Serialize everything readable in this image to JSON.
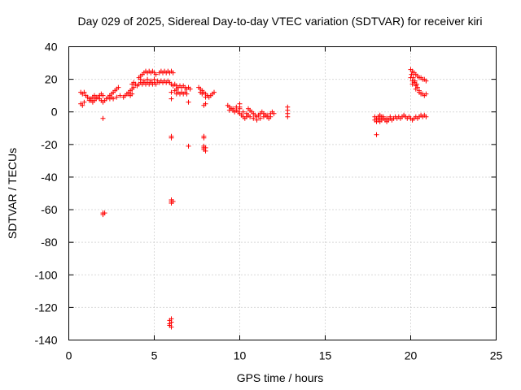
{
  "chart_data": {
    "type": "scatter",
    "title": "Day 029 of 2025, Sidereal Day-to-day VTEC variation (SDTVAR) for receiver kiri",
    "xlabel": "GPS time / hours",
    "ylabel": "SDTVAR / TECUs",
    "xlim": [
      0,
      25
    ],
    "ylim": [
      -140,
      40
    ],
    "x_ticks": [
      0,
      5,
      10,
      15,
      20,
      25
    ],
    "y_ticks": [
      40,
      20,
      0,
      -20,
      -40,
      -60,
      -80,
      -100,
      -120,
      -140
    ],
    "grid": true,
    "marker": "+",
    "series": [
      {
        "name": "SDTVAR",
        "color": "#ff0000",
        "points": [
          [
            0.7,
            5
          ],
          [
            0.8,
            4
          ],
          [
            0.9,
            6
          ],
          [
            0.7,
            12
          ],
          [
            0.8,
            11
          ],
          [
            0.9,
            12
          ],
          [
            1.0,
            10
          ],
          [
            1.1,
            9
          ],
          [
            1.2,
            8
          ],
          [
            1.3,
            7
          ],
          [
            1.4,
            6
          ],
          [
            1.5,
            7
          ],
          [
            1.6,
            8
          ],
          [
            1.7,
            9
          ],
          [
            1.8,
            10
          ],
          [
            1.9,
            11
          ],
          [
            2.0,
            10
          ],
          [
            1.2,
            7
          ],
          [
            1.3,
            8
          ],
          [
            1.4,
            9
          ],
          [
            1.5,
            10
          ],
          [
            1.6,
            9
          ],
          [
            1.8,
            8
          ],
          [
            1.9,
            7
          ],
          [
            2.0,
            6
          ],
          [
            2.1,
            7
          ],
          [
            2.2,
            8
          ],
          [
            2.3,
            9
          ],
          [
            2.4,
            10
          ],
          [
            2.5,
            11
          ],
          [
            2.6,
            12
          ],
          [
            2.7,
            13
          ],
          [
            2.8,
            14
          ],
          [
            2.9,
            15
          ],
          [
            2.4,
            8
          ],
          [
            2.5,
            9
          ],
          [
            2.6,
            8
          ],
          [
            2.8,
            9
          ],
          [
            3.0,
            10
          ],
          [
            3.2,
            9
          ],
          [
            3.3,
            10
          ],
          [
            3.4,
            11
          ],
          [
            3.5,
            12
          ],
          [
            3.6,
            13
          ],
          [
            3.7,
            14
          ],
          [
            3.8,
            15
          ],
          [
            3.5,
            11
          ],
          [
            3.6,
            10
          ],
          [
            3.7,
            11
          ],
          [
            3.7,
            17
          ],
          [
            3.8,
            18
          ],
          [
            3.9,
            17
          ],
          [
            4.0,
            16
          ],
          [
            4.1,
            17
          ],
          [
            4.2,
            18
          ],
          [
            4.3,
            17
          ],
          [
            4.4,
            18
          ],
          [
            4.5,
            17
          ],
          [
            4.6,
            18
          ],
          [
            4.7,
            17
          ],
          [
            4.8,
            18
          ],
          [
            4.9,
            17
          ],
          [
            5.0,
            18
          ],
          [
            5.1,
            17
          ],
          [
            4.1,
            21
          ],
          [
            4.2,
            22
          ],
          [
            4.3,
            23
          ],
          [
            4.4,
            24
          ],
          [
            4.5,
            25
          ],
          [
            4.6,
            24
          ],
          [
            4.7,
            25
          ],
          [
            4.8,
            24
          ],
          [
            4.9,
            25
          ],
          [
            5.0,
            24
          ],
          [
            5.1,
            23
          ],
          [
            4.2,
            20
          ],
          [
            4.4,
            19
          ],
          [
            4.6,
            20
          ],
          [
            4.8,
            19
          ],
          [
            5.0,
            20
          ],
          [
            5.2,
            19
          ],
          [
            5.3,
            18
          ],
          [
            5.4,
            19
          ],
          [
            5.5,
            18
          ],
          [
            5.6,
            19
          ],
          [
            5.7,
            18
          ],
          [
            5.8,
            19
          ],
          [
            5.9,
            18
          ],
          [
            6.0,
            17
          ],
          [
            6.1,
            16
          ],
          [
            6.2,
            17
          ],
          [
            6.3,
            16
          ],
          [
            5.3,
            24
          ],
          [
            5.4,
            25
          ],
          [
            5.5,
            24
          ],
          [
            5.6,
            25
          ],
          [
            5.7,
            24
          ],
          [
            5.8,
            25
          ],
          [
            5.9,
            24
          ],
          [
            6.0,
            25
          ],
          [
            6.1,
            24
          ],
          [
            6.0,
            12
          ],
          [
            6.2,
            13
          ],
          [
            6.3,
            14
          ],
          [
            6.4,
            15
          ],
          [
            6.5,
            16
          ],
          [
            6.6,
            15
          ],
          [
            6.7,
            16
          ],
          [
            6.8,
            15
          ],
          [
            6.9,
            14
          ],
          [
            7.0,
            15
          ],
          [
            7.1,
            14
          ],
          [
            6.3,
            11
          ],
          [
            6.4,
            12
          ],
          [
            6.5,
            11
          ],
          [
            6.6,
            12
          ],
          [
            6.7,
            11
          ],
          [
            6.8,
            12
          ],
          [
            6.9,
            11
          ],
          [
            7.0,
            6
          ],
          [
            6.0,
            8
          ],
          [
            7.6,
            15
          ],
          [
            7.7,
            14
          ],
          [
            7.8,
            13
          ],
          [
            7.9,
            12
          ],
          [
            8.0,
            11
          ],
          [
            8.1,
            10
          ],
          [
            8.2,
            9
          ],
          [
            8.3,
            10
          ],
          [
            8.4,
            11
          ],
          [
            8.5,
            12
          ],
          [
            7.7,
            12
          ],
          [
            7.8,
            11
          ],
          [
            8.0,
            9
          ],
          [
            7.9,
            4
          ],
          [
            8.0,
            5
          ],
          [
            9.3,
            4
          ],
          [
            9.4,
            3
          ],
          [
            9.5,
            2
          ],
          [
            9.6,
            1
          ],
          [
            9.7,
            0
          ],
          [
            9.8,
            1
          ],
          [
            9.9,
            0
          ],
          [
            10.0,
            -1
          ],
          [
            10.1,
            -2
          ],
          [
            10.2,
            -3
          ],
          [
            10.3,
            -4
          ],
          [
            10.4,
            -3
          ],
          [
            9.4,
            1
          ],
          [
            9.6,
            2
          ],
          [
            9.8,
            3
          ],
          [
            10.0,
            2
          ],
          [
            10.2,
            0
          ],
          [
            10.4,
            -1
          ],
          [
            10.5,
            -2
          ],
          [
            10.6,
            -3
          ],
          [
            10.0,
            5
          ],
          [
            10.0,
            3
          ],
          [
            10.5,
            2
          ],
          [
            10.6,
            1
          ],
          [
            10.7,
            0
          ],
          [
            10.8,
            -1
          ],
          [
            10.9,
            -2
          ],
          [
            11.0,
            -3
          ],
          [
            11.1,
            -2
          ],
          [
            11.2,
            -1
          ],
          [
            11.3,
            0
          ],
          [
            11.4,
            -1
          ],
          [
            11.5,
            -2
          ],
          [
            11.6,
            -3
          ],
          [
            10.8,
            -4
          ],
          [
            11.0,
            -5
          ],
          [
            11.2,
            -4
          ],
          [
            11.4,
            -3
          ],
          [
            11.6,
            -2
          ],
          [
            11.8,
            -1
          ],
          [
            11.9,
            0
          ],
          [
            12.0,
            -1
          ],
          [
            11.7,
            -4
          ],
          [
            11.8,
            -3
          ],
          [
            12.8,
            3
          ],
          [
            12.8,
            1
          ],
          [
            12.8,
            -1
          ],
          [
            12.8,
            -3
          ],
          [
            2.0,
            -4
          ],
          [
            6.0,
            -15
          ],
          [
            6.0,
            -16
          ],
          [
            7.0,
            -21
          ],
          [
            7.9,
            -15
          ],
          [
            7.9,
            -16
          ],
          [
            7.9,
            -21
          ],
          [
            7.9,
            -22
          ],
          [
            7.9,
            -23
          ],
          [
            8.0,
            -22
          ],
          [
            8.0,
            -24
          ],
          [
            2.0,
            -62
          ],
          [
            2.0,
            -63
          ],
          [
            2.1,
            -62
          ],
          [
            6.0,
            -54
          ],
          [
            6.0,
            -55
          ],
          [
            6.0,
            -56
          ],
          [
            6.1,
            -55
          ],
          [
            5.9,
            -128
          ],
          [
            5.9,
            -130
          ],
          [
            6.0,
            -129
          ],
          [
            5.9,
            -131
          ],
          [
            6.0,
            -132
          ],
          [
            6.0,
            -127
          ],
          [
            17.9,
            -3
          ],
          [
            17.9,
            -5
          ],
          [
            18.0,
            -4
          ],
          [
            18.0,
            -6
          ],
          [
            18.1,
            -3
          ],
          [
            18.1,
            -5
          ],
          [
            18.2,
            -4
          ],
          [
            18.2,
            -6
          ],
          [
            18.3,
            -5
          ],
          [
            18.4,
            -4
          ],
          [
            18.5,
            -5
          ],
          [
            18.6,
            -6
          ],
          [
            18.7,
            -5
          ],
          [
            18.8,
            -4
          ],
          [
            18.9,
            -5
          ],
          [
            18.2,
            -2
          ],
          [
            18.3,
            -3
          ],
          [
            18.4,
            -3
          ],
          [
            18.6,
            -4
          ],
          [
            18.8,
            -3
          ],
          [
            19.0,
            -4
          ],
          [
            19.1,
            -3
          ],
          [
            19.2,
            -4
          ],
          [
            19.3,
            -3
          ],
          [
            19.4,
            -4
          ],
          [
            19.5,
            -3
          ],
          [
            19.6,
            -2
          ],
          [
            19.7,
            -3
          ],
          [
            19.8,
            -4
          ],
          [
            19.9,
            -3
          ],
          [
            20.0,
            -4
          ],
          [
            20.1,
            -5
          ],
          [
            20.2,
            -4
          ],
          [
            20.3,
            -3
          ],
          [
            20.4,
            -4
          ],
          [
            20.5,
            -3
          ],
          [
            20.6,
            -2
          ],
          [
            20.7,
            -3
          ],
          [
            20.8,
            -2
          ],
          [
            20.9,
            -3
          ],
          [
            18.0,
            -14
          ],
          [
            20.0,
            26
          ],
          [
            20.1,
            25
          ],
          [
            20.2,
            24
          ],
          [
            20.3,
            23
          ],
          [
            20.4,
            22
          ],
          [
            20.5,
            21
          ],
          [
            20.6,
            21
          ],
          [
            20.7,
            20
          ],
          [
            20.8,
            20
          ],
          [
            20.9,
            19
          ],
          [
            20.0,
            21
          ],
          [
            20.1,
            19
          ],
          [
            20.1,
            17
          ],
          [
            20.2,
            18
          ],
          [
            20.3,
            16
          ],
          [
            20.3,
            14
          ],
          [
            20.4,
            15
          ],
          [
            20.5,
            13
          ],
          [
            20.5,
            12
          ],
          [
            20.6,
            11
          ],
          [
            20.7,
            11
          ],
          [
            20.8,
            10
          ],
          [
            20.9,
            11
          ],
          [
            20.05,
            23
          ],
          [
            20.15,
            21
          ],
          [
            20.25,
            19
          ],
          [
            20.35,
            17
          ]
        ]
      }
    ]
  }
}
